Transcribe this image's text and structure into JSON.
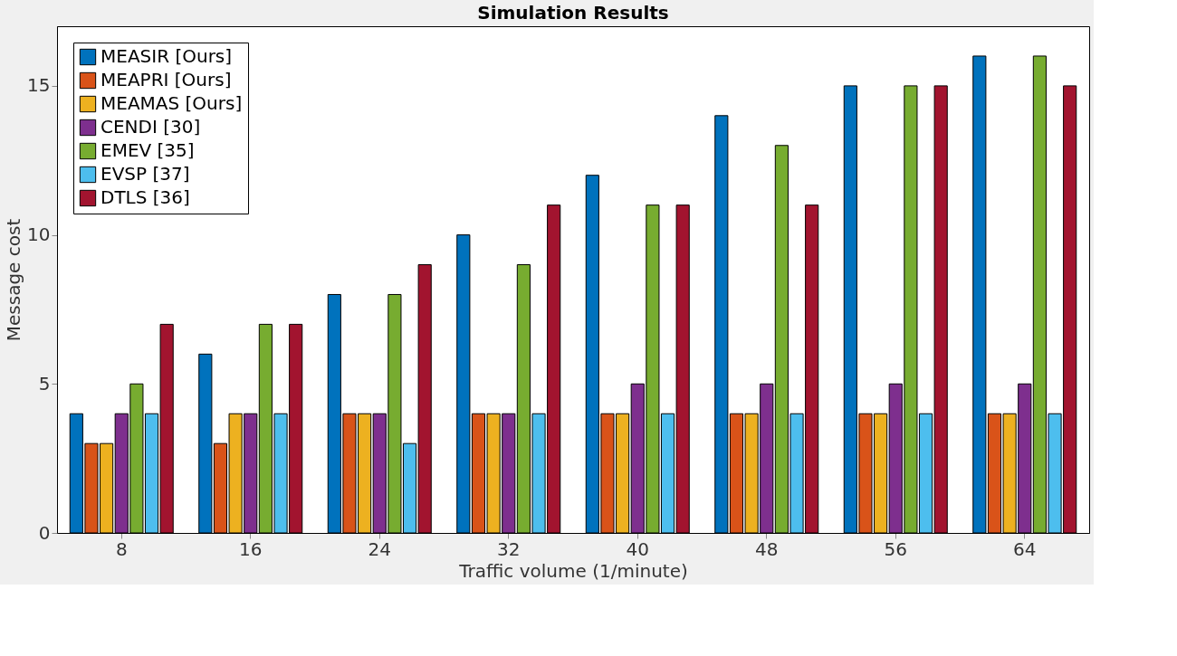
{
  "chart_data": {
    "type": "bar",
    "title": "Simulation Results",
    "xlabel": "Traffic volume (1/minute)",
    "ylabel": "Message cost",
    "categories": [
      "8",
      "16",
      "24",
      "32",
      "40",
      "48",
      "56",
      "64"
    ],
    "series": [
      {
        "name": "MEASIR [Ours]",
        "color": "#0072bd",
        "values": [
          4,
          6,
          8,
          10,
          12,
          14,
          15,
          16
        ]
      },
      {
        "name": "MEAPRI [Ours]",
        "color": "#d95319",
        "values": [
          3,
          3,
          4,
          4,
          4,
          4,
          4,
          4
        ]
      },
      {
        "name": "MEAMAS [Ours]",
        "color": "#edb120",
        "values": [
          3,
          4,
          4,
          4,
          4,
          4,
          4,
          4
        ]
      },
      {
        "name": "CENDI [30]",
        "color": "#7e2f8e",
        "values": [
          4,
          4,
          4,
          4,
          5,
          5,
          5,
          5
        ]
      },
      {
        "name": "EMEV [35]",
        "color": "#77ac30",
        "values": [
          5,
          7,
          8,
          9,
          11,
          13,
          15,
          16
        ]
      },
      {
        "name": "EVSP [37]",
        "color": "#4dbeee",
        "values": [
          4,
          4,
          3,
          4,
          4,
          4,
          4,
          4
        ]
      },
      {
        "name": "DTLS [36]",
        "color": "#a2142f",
        "values": [
          7,
          7,
          9,
          11,
          11,
          11,
          15,
          15
        ]
      }
    ],
    "ylim": [
      0,
      17
    ],
    "yticks": [
      0,
      5,
      10,
      15
    ],
    "grid": false,
    "legend": "top left"
  }
}
